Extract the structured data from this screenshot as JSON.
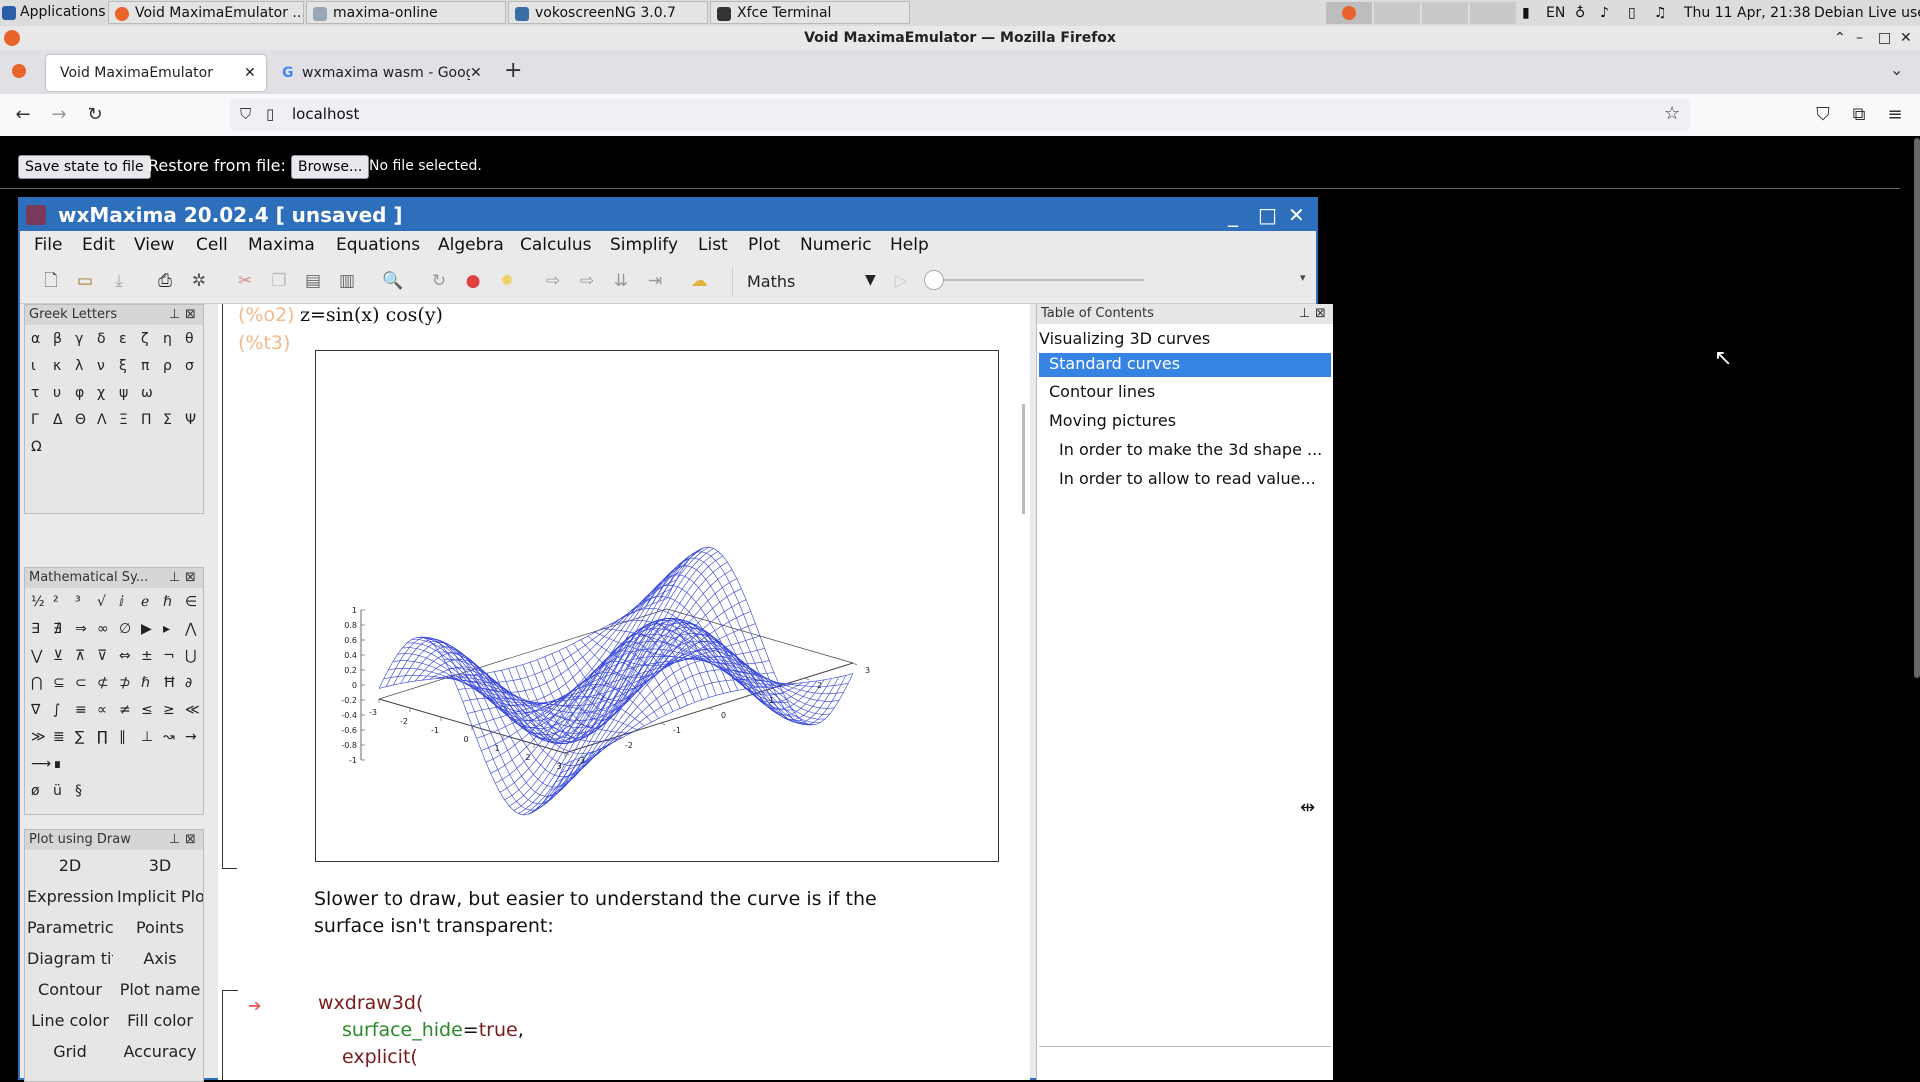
{
  "os_panel": {
    "tasks": [
      {
        "label": "Applications",
        "icon": "xfce-icon"
      },
      {
        "label": "Void MaximaEmulator ...",
        "icon": "firefox-icon"
      },
      {
        "label": "maxima-online",
        "icon": "folder-icon"
      },
      {
        "label": "vokoscreenNG 3.0.7",
        "icon": "vokoscreen-icon"
      },
      {
        "label": "Xfce Terminal",
        "icon": "terminal-icon"
      }
    ],
    "lang": "EN",
    "clock": "Thu 11 Apr, 21:38",
    "user": "Debian Live user"
  },
  "browser": {
    "window_title": "Void MaximaEmulator — Mozilla Firefox",
    "tabs": [
      {
        "label": "Void MaximaEmulator",
        "active": true
      },
      {
        "label": "wxmaxima wasm - Goog",
        "active": false
      }
    ],
    "url": "localhost"
  },
  "page": {
    "save_button": "Save state to file",
    "restore_label": "Restore from file:",
    "browse_button": "Browse...",
    "no_file": "No file selected."
  },
  "wxmaxima": {
    "title": "wxMaxima 20.02.4 [ unsaved ]",
    "menu": [
      "File",
      "Edit",
      "View",
      "Cell",
      "Maxima",
      "Equations",
      "Algebra",
      "Calculus",
      "Simplify",
      "List",
      "Plot",
      "Numeric",
      "Help"
    ],
    "cell_type": "Maths",
    "greek_panel": {
      "title": "Greek Letters",
      "rows": [
        [
          "α",
          "β",
          "γ",
          "δ",
          "ε",
          "ζ",
          "η",
          "θ"
        ],
        [
          "ι",
          "κ",
          "λ",
          "ν",
          "ξ",
          "π",
          "ρ",
          "σ"
        ],
        [
          "τ",
          "υ",
          "φ",
          "χ",
          "ψ",
          "ω"
        ],
        [
          "Γ",
          "Δ",
          "Θ",
          "Λ",
          "Ξ",
          "Π",
          "Σ",
          "Ψ"
        ],
        [
          "Ω"
        ]
      ]
    },
    "math_panel": {
      "title": "Mathematical Sy...",
      "rows": [
        [
          "½",
          "²",
          "³",
          "√",
          "ⅈ",
          "ℯ",
          "ℏ",
          "∈"
        ],
        [
          "∃",
          "∄",
          "⇒",
          "∞",
          "∅",
          "▶",
          "▸",
          "⋀"
        ],
        [
          "⋁",
          "⊻",
          "⊼",
          "⊽",
          "⇔",
          "±",
          "¬",
          "⋃"
        ],
        [
          "⋂",
          "⊆",
          "⊂",
          "⊄",
          "⊅",
          "ℏ",
          "Ħ",
          "∂"
        ],
        [
          "∇",
          "∫",
          "≡",
          "∝",
          "≠",
          "≤",
          "≥",
          "≪"
        ],
        [
          "≫",
          "≣",
          "∑",
          "∏",
          "∥",
          "⊥",
          "↝",
          "→"
        ],
        [
          "⟶",
          "∎"
        ],
        [
          "ø",
          "ü",
          "§"
        ]
      ]
    },
    "draw_panel": {
      "title": "Plot using Draw",
      "buttons": [
        [
          "2D",
          "3D"
        ],
        [
          "Expression",
          "Implicit Plo"
        ],
        [
          "Parametric Pl",
          "Points"
        ],
        [
          "Diagram titl",
          "Axis"
        ],
        [
          "Contour",
          "Plot name"
        ],
        [
          "Line color",
          "Fill color"
        ],
        [
          "Grid",
          "Accuracy"
        ]
      ]
    },
    "worksheet": {
      "output_label": "(%o2)",
      "output_expr": "z=sin(x) cos(y)",
      "plot_label": "(%t3)",
      "z_ticks": [
        "1",
        "0.8",
        "0.6",
        "0.4",
        "0.2",
        "0",
        "-0.2",
        "-0.4",
        "-0.6",
        "-0.8",
        "-1"
      ],
      "x_ticks": [
        "-3",
        "-2",
        "-1",
        "0",
        "1",
        "2",
        "3"
      ],
      "y_ticks": [
        "-3",
        "-2",
        "-1",
        "0",
        "1",
        "2",
        "3"
      ],
      "text_line1": "Slower to draw, but easier to understand the curve is if the",
      "text_line2": "surface isn't transparent:",
      "code": {
        "line1": "wxdraw3d(",
        "line2_key": "surface_hide",
        "line2_eq": "=",
        "line2_val": "true",
        "line2_comma": ",",
        "line3": "explicit("
      }
    },
    "toc": {
      "title": "Table of Contents",
      "items": [
        {
          "label": "Visualizing 3D curves",
          "level": 1
        },
        {
          "label": "Standard curves",
          "level": 2,
          "selected": true
        },
        {
          "label": "Contour lines",
          "level": 2
        },
        {
          "label": "Moving pictures",
          "level": 2
        },
        {
          "label": "In order to make the 3d shape ...",
          "level": 3
        },
        {
          "label": "In order to allow to read value...",
          "level": 3
        }
      ]
    }
  }
}
